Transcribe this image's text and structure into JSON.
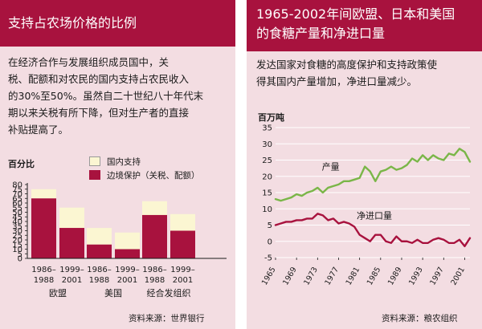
{
  "left": {
    "title": "支持占农场价格的比例",
    "body_lines": [
      "在经济合作与发展组织成员国中，关",
      "税、配额和对农民的国内支持占农民收入",
      "的30%至50%。虽然自二十世纪八十年代末",
      "期以来关税有所下降，但对生产者的直接",
      "补贴提高了。"
    ],
    "source": "资料来源：世界银行",
    "colors": {
      "domestic": "#fbf6d2",
      "border": "#a8123e",
      "header": "#a8123e",
      "panel": "#f3dde2"
    },
    "chart_data": {
      "type": "bar",
      "stacked": true,
      "ylabel": "百分比",
      "ylim": [
        0,
        80
      ],
      "yticks": [
        0,
        5,
        10,
        15,
        20,
        25,
        30,
        35,
        40,
        45,
        50,
        55,
        60,
        65,
        70,
        75,
        80
      ],
      "groups": [
        {
          "name": "欧盟",
          "periods": [
            {
              "label": [
                "1986–",
                "1988"
              ],
              "border": 65,
              "domestic": 10
            },
            {
              "label": [
                "1999–",
                "2001"
              ],
              "border": 33,
              "domestic": 22
            }
          ]
        },
        {
          "name": "美国",
          "periods": [
            {
              "label": [
                "1986–",
                "1988"
              ],
              "border": 15,
              "domestic": 18
            },
            {
              "label": [
                "1999–",
                "2001"
              ],
              "border": 10,
              "domestic": 18
            }
          ]
        },
        {
          "name": "经合发组织",
          "periods": [
            {
              "label": [
                "1986–",
                "1988"
              ],
              "border": 47,
              "domestic": 15
            },
            {
              "label": [
                "1999–",
                "2001"
              ],
              "border": 30,
              "domestic": 18
            }
          ]
        }
      ],
      "series": [
        {
          "name": "国内支持",
          "key": "domestic"
        },
        {
          "name": "边境保护（关税、配额）",
          "key": "border"
        }
      ]
    }
  },
  "right": {
    "title_lines": [
      "1965-2002年间欧盟、日本和美国",
      "的食糖产量和净进口量"
    ],
    "body_lines": [
      "发达国家对食糖的高度保护和支持政策使",
      "得其国内产量增加，净进口量减少。"
    ],
    "source": "资料来源：粮农组织",
    "colors": {
      "production": "#7ab648",
      "imports": "#a8123e",
      "grid": "#ffffff"
    },
    "chart_data": {
      "type": "line",
      "ylabel": "百万吨",
      "ylim": [
        -5,
        35
      ],
      "yticks": [
        -5,
        0,
        5,
        10,
        15,
        20,
        25,
        30,
        35
      ],
      "xlim": [
        1965,
        2002
      ],
      "xticks": [
        1965,
        1969,
        1973,
        1977,
        1981,
        1985,
        1989,
        1993,
        1997,
        2001
      ],
      "series": [
        {
          "name": "产量",
          "label_x": 1975.5,
          "label_y": 22,
          "x": [
            1965,
            1966,
            1967,
            1968,
            1969,
            1970,
            1971,
            1972,
            1973,
            1974,
            1975,
            1976,
            1977,
            1978,
            1979,
            1980,
            1981,
            1982,
            1983,
            1984,
            1985,
            1986,
            1987,
            1988,
            1989,
            1990,
            1991,
            1992,
            1993,
            1994,
            1995,
            1996,
            1997,
            1998,
            1999,
            2000,
            2001,
            2002
          ],
          "y": [
            13,
            12.5,
            13,
            13.5,
            14.5,
            14,
            15,
            15.5,
            16.5,
            15,
            16.5,
            17,
            17.5,
            18.5,
            18.5,
            19,
            19.5,
            23,
            21.5,
            18.5,
            21.5,
            22,
            23,
            22,
            22.5,
            23.5,
            25.5,
            24.5,
            26.5,
            25,
            26.5,
            25.5,
            25,
            27,
            26.5,
            28.5,
            27.5,
            24.5
          ]
        },
        {
          "name": "净进口量",
          "label_x": 1983.8,
          "label_y": 7,
          "x": [
            1965,
            1966,
            1967,
            1968,
            1969,
            1970,
            1971,
            1972,
            1973,
            1974,
            1975,
            1976,
            1977,
            1978,
            1979,
            1980,
            1981,
            1982,
            1983,
            1984,
            1985,
            1986,
            1987,
            1988,
            1989,
            1990,
            1991,
            1992,
            1993,
            1994,
            1995,
            1996,
            1997,
            1998,
            1999,
            2000,
            2001,
            2002
          ],
          "y": [
            5,
            5.5,
            6,
            6,
            6.5,
            6.5,
            7,
            7,
            8.5,
            8,
            6.5,
            7,
            5.5,
            6,
            5.5,
            4.5,
            2,
            1,
            0,
            2,
            2,
            0,
            -0.5,
            1.5,
            0,
            0,
            -0.5,
            0.5,
            -0.5,
            -0.5,
            0.5,
            1,
            0.5,
            -0.5,
            -0.5,
            0.5,
            -1.5,
            1
          ]
        }
      ]
    }
  }
}
